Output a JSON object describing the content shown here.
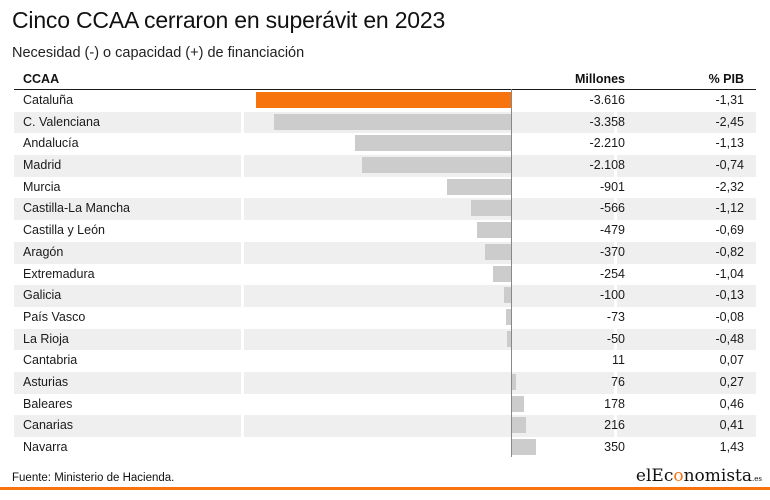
{
  "title": "Cinco CCAA cerraron en superávit en 2023",
  "subtitle": "Necesidad (-) o capacidad (+) de financiación",
  "source": "Fuente: Ministerio de Hacienda.",
  "logo": {
    "prefix": "el",
    "brand_e": "E",
    "brand_c": "c",
    "brand_o": "o",
    "brand_rest": "nomista",
    "suffix": ".es"
  },
  "colors": {
    "highlight": "#f7730e",
    "bar": "#cccccc",
    "stripe": "#efefef"
  },
  "chart_data": {
    "type": "table",
    "columns": [
      "CCAA",
      "Millones",
      "% PIB"
    ],
    "highlight": "Cataluña",
    "rows": [
      {
        "name": "Cataluña",
        "millones": -3616,
        "millones_label": "-3.616",
        "pib_label": "-1,31"
      },
      {
        "name": "C. Valenciana",
        "millones": -3358,
        "millones_label": "-3.358",
        "pib_label": "-2,45"
      },
      {
        "name": "Andalucía",
        "millones": -2210,
        "millones_label": "-2.210",
        "pib_label": "-1,13"
      },
      {
        "name": "Madrid",
        "millones": -2108,
        "millones_label": "-2.108",
        "pib_label": "-0,74"
      },
      {
        "name": "Murcia",
        "millones": -901,
        "millones_label": "-901",
        "pib_label": "-2,32"
      },
      {
        "name": "Castilla-La Mancha",
        "millones": -566,
        "millones_label": "-566",
        "pib_label": "-1,12"
      },
      {
        "name": "Castilla y León",
        "millones": -479,
        "millones_label": "-479",
        "pib_label": "-0,69"
      },
      {
        "name": "Aragón",
        "millones": -370,
        "millones_label": "-370",
        "pib_label": "-0,82"
      },
      {
        "name": "Extremadura",
        "millones": -254,
        "millones_label": "-254",
        "pib_label": "-1,04"
      },
      {
        "name": "Galicia",
        "millones": -100,
        "millones_label": "-100",
        "pib_label": "-0,13"
      },
      {
        "name": "País Vasco",
        "millones": -73,
        "millones_label": "-73",
        "pib_label": "-0,08"
      },
      {
        "name": "La Rioja",
        "millones": -50,
        "millones_label": "-50",
        "pib_label": "-0,48"
      },
      {
        "name": "Cantabria",
        "millones": 11,
        "millones_label": "11",
        "pib_label": "0,07"
      },
      {
        "name": "Asturias",
        "millones": 76,
        "millones_label": "76",
        "pib_label": "0,27"
      },
      {
        "name": "Baleares",
        "millones": 178,
        "millones_label": "178",
        "pib_label": "0,46"
      },
      {
        "name": "Canarias",
        "millones": 216,
        "millones_label": "216",
        "pib_label": "0,41"
      },
      {
        "name": "Navarra",
        "millones": 350,
        "millones_label": "350",
        "pib_label": "1,43"
      }
    ]
  }
}
